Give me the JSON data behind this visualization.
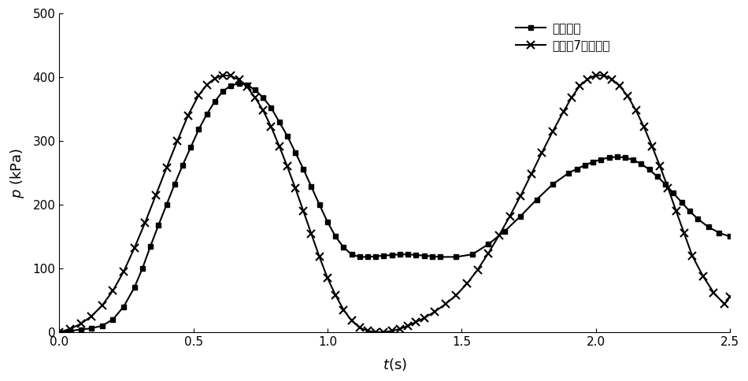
{
  "title": "",
  "xlim": [
    0,
    2.5
  ],
  "ylim": [
    0,
    500
  ],
  "xticks": [
    0,
    0.5,
    1.0,
    1.5,
    2.0,
    2.5
  ],
  "yticks": [
    0,
    100,
    200,
    300,
    400,
    500
  ],
  "legend1": "实测数据",
  "legend2": "公式（7）计算値",
  "measured_t": [
    0.0,
    0.04,
    0.08,
    0.12,
    0.16,
    0.2,
    0.24,
    0.28,
    0.31,
    0.34,
    0.37,
    0.4,
    0.43,
    0.46,
    0.49,
    0.52,
    0.55,
    0.58,
    0.61,
    0.64,
    0.67,
    0.7,
    0.73,
    0.76,
    0.79,
    0.82,
    0.85,
    0.88,
    0.91,
    0.94,
    0.97,
    1.0,
    1.03,
    1.06,
    1.09,
    1.12,
    1.15,
    1.18,
    1.21,
    1.24,
    1.27,
    1.3,
    1.33,
    1.36,
    1.39,
    1.42,
    1.48,
    1.54,
    1.6,
    1.66,
    1.72,
    1.78,
    1.84,
    1.9,
    1.93,
    1.96,
    1.99,
    2.02,
    2.05,
    2.08,
    2.11,
    2.14,
    2.17,
    2.2,
    2.23,
    2.26,
    2.29,
    2.32,
    2.35,
    2.38,
    2.42,
    2.46,
    2.5
  ],
  "measured_p": [
    0,
    2,
    4,
    6,
    10,
    20,
    40,
    70,
    100,
    135,
    168,
    200,
    232,
    262,
    290,
    318,
    342,
    362,
    378,
    387,
    390,
    388,
    380,
    368,
    352,
    330,
    308,
    282,
    256,
    228,
    200,
    173,
    150,
    133,
    122,
    118,
    118,
    119,
    120,
    121,
    122,
    122,
    121,
    120,
    119,
    118,
    118,
    122,
    138,
    158,
    182,
    208,
    232,
    250,
    256,
    262,
    267,
    271,
    274,
    275,
    274,
    270,
    264,
    255,
    244,
    232,
    218,
    204,
    190,
    178,
    165,
    156,
    150
  ],
  "calc_t": [
    0.0,
    0.04,
    0.08,
    0.12,
    0.16,
    0.2,
    0.24,
    0.28,
    0.32,
    0.36,
    0.4,
    0.44,
    0.48,
    0.52,
    0.55,
    0.58,
    0.61,
    0.64,
    0.67,
    0.7,
    0.73,
    0.76,
    0.79,
    0.82,
    0.85,
    0.88,
    0.91,
    0.94,
    0.97,
    1.0,
    1.03,
    1.06,
    1.09,
    1.12,
    1.15,
    1.18,
    1.21,
    1.24,
    1.27,
    1.3,
    1.33,
    1.36,
    1.4,
    1.44,
    1.48,
    1.52,
    1.56,
    1.6,
    1.64,
    1.68,
    1.72,
    1.76,
    1.8,
    1.84,
    1.88,
    1.91,
    1.94,
    1.97,
    2.0,
    2.03,
    2.06,
    2.09,
    2.12,
    2.15,
    2.18,
    2.21,
    2.24,
    2.27,
    2.3,
    2.33,
    2.36,
    2.4,
    2.44,
    2.48,
    2.5
  ],
  "calc_p": [
    0,
    5,
    13,
    25,
    42,
    65,
    95,
    132,
    172,
    215,
    258,
    300,
    340,
    372,
    388,
    398,
    403,
    402,
    396,
    385,
    368,
    348,
    322,
    292,
    260,
    226,
    190,
    154,
    118,
    85,
    58,
    35,
    18,
    7,
    2,
    0,
    0,
    2,
    5,
    10,
    16,
    22,
    32,
    44,
    58,
    76,
    98,
    124,
    152,
    182,
    214,
    248,
    282,
    315,
    346,
    368,
    386,
    397,
    403,
    403,
    397,
    386,
    370,
    348,
    322,
    292,
    260,
    226,
    190,
    155,
    120,
    88,
    62,
    44,
    55
  ],
  "line_color": "#000000",
  "marker_measured": "s",
  "marker_calc": "x",
  "markersize_measured": 5,
  "markersize_calc": 7,
  "linewidth": 1.5,
  "background_color": "#ffffff"
}
